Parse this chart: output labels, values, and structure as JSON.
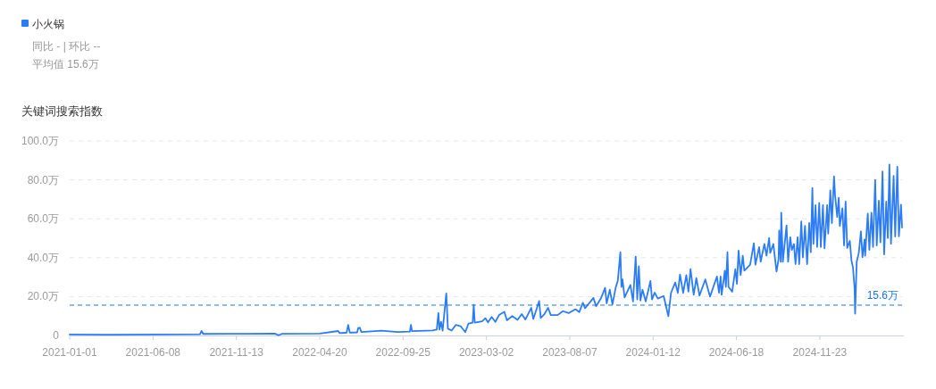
{
  "chart_data": {
    "type": "line",
    "title": "关键词搜索指数",
    "legend": "top left",
    "grid": "y",
    "annotations": [
      "同比 - | 环比 --",
      "平均值 15.6万"
    ],
    "ref_lines": [
      {
        "axis": "y",
        "value": 15.6,
        "label": "15.6万",
        "color": "#1a73f0",
        "line_style": "dashed"
      }
    ],
    "xlim": [
      "2021-01-01",
      "2025-04-28"
    ],
    "xticks": [
      "2021-01-01",
      "2021-06-08",
      "2021-11-13",
      "2022-04-20",
      "2022-09-25",
      "2023-03-02",
      "2023-08-07",
      "2024-01-12",
      "2024-06-18",
      "2024-11-23"
    ],
    "ylim": [
      0,
      100
    ],
    "yticks": [
      0,
      {
        "value": 20,
        "label": "20.0万"
      },
      {
        "value": 40,
        "label": "40.0万"
      },
      {
        "value": 60,
        "label": "60.0万"
      },
      {
        "value": 80,
        "label": "80.0万"
      },
      {
        "value": 100,
        "label": "100.0万"
      }
    ],
    "x": [
      "2021-01-01",
      "2021-03-15",
      "2021-06-20",
      "2021-09-05",
      "2021-09-08",
      "2021-09-11",
      "2021-12-01",
      "2022-01-25",
      "2022-02-01",
      "2022-02-08",
      "2022-04-20",
      "2022-05-25",
      "2022-05-28",
      "2022-06-10",
      "2022-06-13",
      "2022-06-16",
      "2022-06-30",
      "2022-07-02",
      "2022-07-05",
      "2022-07-08",
      "2022-08-15",
      "2022-09-15",
      "2022-10-08",
      "2022-10-10",
      "2022-10-12",
      "2022-11-20",
      "2022-11-28",
      "2022-12-01",
      "2022-12-03",
      "2022-12-06",
      "2022-12-09",
      "2022-12-16",
      "2022-12-19",
      "2022-12-26",
      "2023-01-03",
      "2023-01-12",
      "2023-01-21",
      "2023-01-27",
      "2023-02-04",
      "2023-02-06",
      "2023-02-08",
      "2023-02-22",
      "2023-02-28",
      "2023-03-05",
      "2023-03-12",
      "2023-03-19",
      "2023-03-26",
      "2023-04-05",
      "2023-04-10",
      "2023-04-20",
      "2023-04-30",
      "2023-05-08",
      "2023-05-15",
      "2023-05-26",
      "2023-05-30",
      "2023-06-10",
      "2023-06-13",
      "2023-06-20",
      "2023-06-27",
      "2023-07-02",
      "2023-07-15",
      "2023-07-25",
      "2023-08-05",
      "2023-08-18",
      "2023-08-25",
      "2023-09-01",
      "2023-09-05",
      "2023-09-21",
      "2023-09-26",
      "2023-10-05",
      "2023-10-13",
      "2023-10-16",
      "2023-10-22",
      "2023-10-27",
      "2023-11-02",
      "2023-11-06",
      "2023-11-11",
      "2023-11-13",
      "2023-11-15",
      "2023-11-19",
      "2023-11-30",
      "2023-12-05",
      "2023-12-10",
      "2023-12-13",
      "2023-12-16",
      "2023-12-19",
      "2023-12-23",
      "2023-12-29",
      "2024-01-07",
      "2024-01-10",
      "2024-01-15",
      "2024-01-21",
      "2024-02-01",
      "2024-02-10",
      "2024-02-15",
      "2024-02-23",
      "2024-02-28",
      "2024-03-03",
      "2024-03-09",
      "2024-03-15",
      "2024-03-19",
      "2024-03-23",
      "2024-03-29",
      "2024-04-03",
      "2024-04-09",
      "2024-04-20",
      "2024-04-29",
      "2024-05-12",
      "2024-05-16",
      "2024-05-19",
      "2024-05-21",
      "2024-05-27",
      "2024-05-29",
      "2024-06-01",
      "2024-06-03",
      "2024-06-10",
      "2024-06-16",
      "2024-06-19",
      "2024-06-22",
      "2024-06-26",
      "2024-06-30",
      "2024-07-03",
      "2024-07-14",
      "2024-07-21",
      "2024-07-24",
      "2024-07-31",
      "2024-08-03",
      "2024-08-10",
      "2024-08-14",
      "2024-08-19",
      "2024-08-21",
      "2024-08-27",
      "2024-09-02",
      "2024-09-06",
      "2024-09-07",
      "2024-09-10",
      "2024-09-11",
      "2024-09-14",
      "2024-09-21",
      "2024-09-24",
      "2024-09-28",
      "2024-10-01",
      "2024-10-05",
      "2024-10-08",
      "2024-10-12",
      "2024-10-15",
      "2024-10-19",
      "2024-10-22",
      "2024-10-26",
      "2024-10-30",
      "2024-11-03",
      "2024-11-06",
      "2024-11-09",
      "2024-11-11",
      "2024-11-15",
      "2024-11-18",
      "2024-11-22",
      "2024-11-25",
      "2024-11-29",
      "2024-12-02",
      "2024-12-07",
      "2024-12-09",
      "2024-12-13",
      "2024-12-16",
      "2024-12-20",
      "2024-12-22",
      "2024-12-26",
      "2024-12-29",
      "2024-12-31",
      "2025-01-05",
      "2025-01-08",
      "2025-01-11",
      "2025-01-14",
      "2025-01-19",
      "2025-01-22",
      "2025-01-25",
      "2025-01-28",
      "2025-01-29",
      "2025-02-01",
      "2025-02-05",
      "2025-02-09",
      "2025-02-12",
      "2025-02-16",
      "2025-02-17",
      "2025-02-22",
      "2025-02-25",
      "2025-03-01",
      "2025-03-04",
      "2025-03-08",
      "2025-03-11",
      "2025-03-15",
      "2025-03-18",
      "2025-03-22",
      "2025-03-25",
      "2025-03-29",
      "2025-04-01",
      "2025-04-04",
      "2025-04-07",
      "2025-04-12",
      "2025-04-15",
      "2025-04-19",
      "2025-04-22",
      "2025-04-26",
      "2025-04-28"
    ],
    "series": [
      {
        "name": "小火锅",
        "color": "#2b7cf6",
        "values": [
          0.5,
          0.4,
          0.5,
          0.6,
          2.3,
          0.8,
          0.9,
          1.0,
          0.1,
          0.9,
          1.0,
          2.3,
          1.2,
          1.5,
          5.4,
          1.5,
          1.6,
          3.8,
          4.0,
          1.8,
          2.5,
          1.8,
          2.0,
          5.4,
          2.2,
          2.6,
          3.0,
          11.5,
          3.0,
          7.0,
          2.5,
          21.6,
          3.5,
          2.5,
          5.4,
          4.8,
          1.7,
          6.1,
          6.6,
          15.7,
          6.6,
          7.3,
          8.9,
          6.8,
          9.5,
          7.0,
          10.5,
          12.2,
          7.8,
          10.0,
          8.0,
          11.0,
          8.2,
          14.2,
          8.5,
          17.7,
          9.0,
          11.0,
          14.2,
          10.5,
          10.5,
          12.5,
          11.5,
          13.5,
          12.0,
          16.8,
          14.0,
          19.3,
          15.0,
          19.0,
          24.5,
          16.5,
          23.5,
          16.0,
          24.5,
          28.0,
          42.8,
          25.0,
          28.8,
          19.6,
          26.0,
          17.5,
          40.5,
          18.5,
          35.6,
          18.0,
          23.5,
          17.5,
          28.0,
          18.5,
          22.0,
          19.0,
          20.3,
          9.9,
          21.9,
          27.2,
          21.9,
          31.3,
          21.9,
          31.0,
          22.5,
          34.1,
          20.9,
          29.5,
          20.5,
          28.8,
          20.0,
          30.3,
          22.0,
          30.3,
          20.9,
          33.3,
          25.0,
          42.8,
          25.0,
          22.5,
          34.1,
          26.5,
          43.6,
          31.0,
          41.0,
          33.3,
          36.4,
          47.4,
          36.4,
          45.5,
          37.9,
          47.1,
          41.0,
          50.1,
          42.5,
          47.0,
          32.9,
          39.4,
          54.0,
          37.9,
          63.1,
          37.9,
          56.6,
          37.9,
          50.5,
          44.0,
          47.0,
          36.7,
          50.5,
          36.7,
          58.6,
          40.2,
          56.3,
          36.7,
          57.8,
          42.8,
          75.8,
          47.1,
          67.0,
          45.5,
          68.2,
          45.5,
          67.0,
          44.8,
          67.0,
          52.4,
          74.6,
          57.8,
          81.8,
          72.3,
          60.9,
          70.8,
          56.3,
          65.4,
          46.3,
          68.8,
          45.0,
          48.6,
          38.7,
          34.9,
          24.2,
          11.2,
          37.9,
          42.5,
          53.5,
          40.2,
          49.4,
          41.0,
          62.7,
          44.0,
          63.1,
          45.5,
          80.0,
          46.3,
          69.3,
          47.9,
          84.3,
          41.7,
          68.8,
          50.1,
          87.9,
          47.1,
          82.0,
          50.9,
          86.8,
          51.0,
          67.3,
          55.5
        ]
      }
    ]
  }
}
